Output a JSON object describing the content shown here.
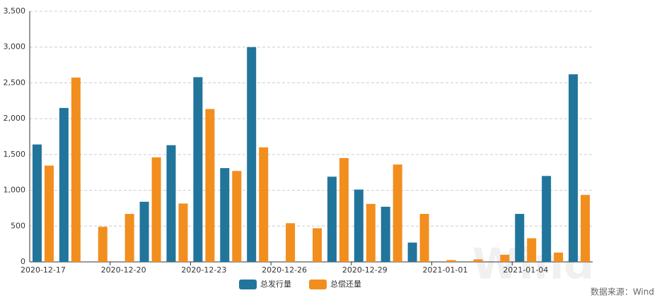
{
  "chart_data": {
    "type": "bar",
    "categories": [
      "2020-12-17",
      null,
      null,
      "2020-12-20",
      null,
      null,
      "2020-12-23",
      null,
      null,
      "2020-12-26",
      null,
      null,
      "2020-12-29",
      null,
      null,
      "2021-01-01",
      null,
      null,
      "2021-01-04",
      null,
      null
    ],
    "series": [
      {
        "name": "总发行量",
        "color": "#21759b",
        "values": [
          1640,
          2150,
          null,
          null,
          840,
          1630,
          2580,
          1310,
          3000,
          null,
          null,
          1190,
          1010,
          770,
          270,
          null,
          null,
          null,
          670,
          1200,
          2620
        ]
      },
      {
        "name": "总偿还量",
        "color": "#f28e1e",
        "values": [
          1345,
          2575,
          490,
          670,
          1460,
          815,
          2135,
          1270,
          1600,
          540,
          470,
          1450,
          810,
          1360,
          670,
          25,
          35,
          100,
          330,
          130,
          935
        ]
      }
    ],
    "ylim": [
      0,
      3500
    ],
    "yticks": [
      0,
      500,
      {
        "value": 1000,
        "label": "1,000"
      },
      {
        "value": 1500,
        "label": "1,500"
      },
      {
        "value": 2000,
        "label": "2,000"
      },
      {
        "value": 2500,
        "label": "2,500"
      },
      {
        "value": 3000,
        "label": "3,000"
      },
      {
        "value": 3500,
        "label": "3,500"
      }
    ],
    "grid": true,
    "legend": "bottom",
    "source": "数据来源：Wind",
    "watermark": "Wind"
  }
}
